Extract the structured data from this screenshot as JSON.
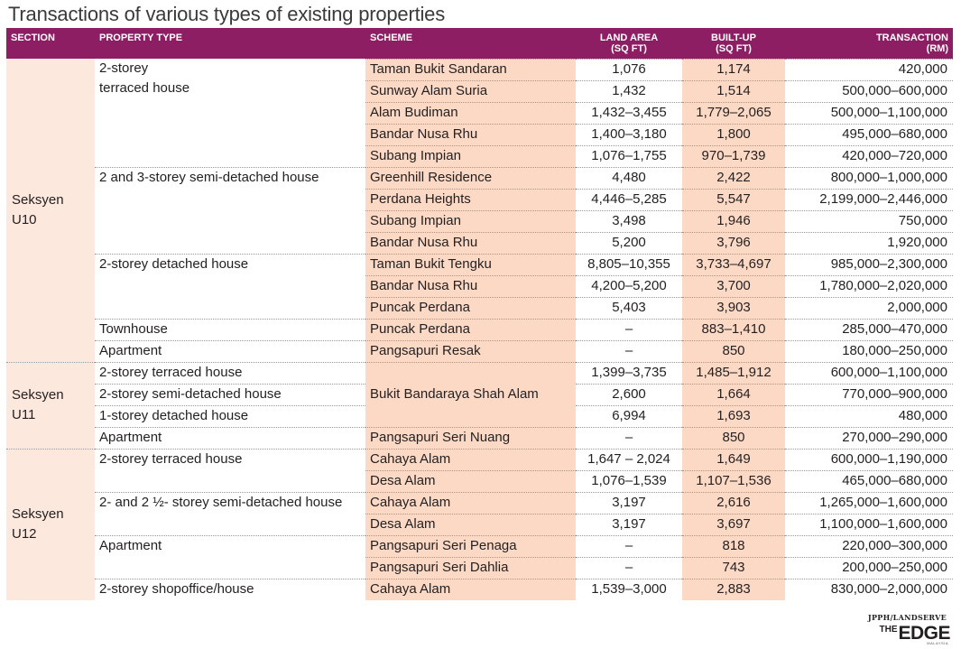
{
  "title": "Transactions of various types of existing properties",
  "columns": {
    "section": "SECTION",
    "property_type": "PROPERTY TYPE",
    "scheme": "SCHEME",
    "land_area": "LAND AREA",
    "land_area_unit": "(SQ FT)",
    "built_up": "BUILT-UP",
    "built_up_unit": "(SQ FT)",
    "transaction": "TRANSACTION",
    "transaction_unit": "(RM)"
  },
  "sections": [
    {
      "name": "Seksyen U10",
      "line1": "Seksyen",
      "line2": "U10"
    },
    {
      "name": "Seksyen U11"
    },
    {
      "name": "Seksyen U12",
      "line1": "Seksyen",
      "line2": "U12"
    }
  ],
  "property_types": {
    "u10_terraced_line1": "2-storey",
    "u10_terraced_line2": "terraced house",
    "u10_semid": "2 and 3-storey semi-detached house",
    "u10_detached": "2-storey detached house",
    "u10_townhouse": "Townhouse",
    "u10_apartment": "Apartment",
    "u11_terraced": "2-storey terraced house",
    "u11_semid": "2-storey semi-detached house",
    "u11_detached": "1-storey detached house",
    "u11_apartment": "Apartment",
    "u12_terraced": "2-storey terraced house",
    "u12_semid": "2- and 2 ½- storey semi-detached house",
    "u12_apartment": "Apartment",
    "u12_shopoffice": "2-storey shopoffice/house"
  },
  "rows": [
    {
      "scheme": "Taman Bukit Sandaran",
      "land": "1,076",
      "built": "1,174",
      "trans": "420,000"
    },
    {
      "scheme": "Sunway Alam Suria",
      "land": "1,432",
      "built": "1,514",
      "trans": "500,000–600,000"
    },
    {
      "scheme": "Alam Budiman",
      "land": "1,432–3,455",
      "built": "1,779–2,065",
      "trans": "500,000–1,100,000"
    },
    {
      "scheme": "Bandar Nusa Rhu",
      "land": "1,400–3,180",
      "built": "1,800",
      "trans": "495,000–680,000"
    },
    {
      "scheme": "Subang Impian",
      "land": "1,076–1,755",
      "built": "970–1,739",
      "trans": "420,000–720,000"
    },
    {
      "scheme": "Greenhill Residence",
      "land": "4,480",
      "built": "2,422",
      "trans": "800,000–1,000,000"
    },
    {
      "scheme": "Perdana Heights",
      "land": "4,446–5,285",
      "built": "5,547",
      "trans": "2,199,000–2,446,000"
    },
    {
      "scheme": "Subang Impian",
      "land": "3,498",
      "built": "1,946",
      "trans": "750,000"
    },
    {
      "scheme": "Bandar Nusa Rhu",
      "land": "5,200",
      "built": "3,796",
      "trans": "1,920,000"
    },
    {
      "scheme": "Taman Bukit Tengku",
      "land": "8,805–10,355",
      "built": "3,733–4,697",
      "trans": "985,000–2,300,000"
    },
    {
      "scheme": "Bandar Nusa Rhu",
      "land": "4,200–5,200",
      "built": "3,700",
      "trans": "1,780,000–2,020,000"
    },
    {
      "scheme": "Puncak Perdana",
      "land": "5,403",
      "built": "3,903",
      "trans": "2,000,000"
    },
    {
      "scheme": "Puncak Perdana",
      "land": "–",
      "built": "883–1,410",
      "trans": "285,000–470,000"
    },
    {
      "scheme": "Pangsapuri Resak",
      "land": "–",
      "built": "850",
      "trans": "180,000–250,000"
    },
    {
      "scheme": "Bukit Bandaraya Shah Alam",
      "land": "1,399–3,735",
      "built": "1,485–1,912",
      "trans": "600,000–1,100,000"
    },
    {
      "scheme": "",
      "land": "2,600",
      "built": "1,664",
      "trans": "770,000–900,000"
    },
    {
      "scheme": "",
      "land": "6,994",
      "built": "1,693",
      "trans": "480,000"
    },
    {
      "scheme": "Pangsapuri Seri Nuang",
      "land": "–",
      "built": "850",
      "trans": "270,000–290,000"
    },
    {
      "scheme": "Cahaya Alam",
      "land": "1,647 – 2,024",
      "built": "1,649",
      "trans": "600,000–1,190,000"
    },
    {
      "scheme": "Desa Alam",
      "land": "1,076–1,539",
      "built": "1,107–1,536",
      "trans": "465,000–680,000"
    },
    {
      "scheme": "Cahaya Alam",
      "land": "3,197",
      "built": "2,616",
      "trans": "1,265,000–1,600,000"
    },
    {
      "scheme": "Desa Alam",
      "land": "3,197",
      "built": "3,697",
      "trans": "1,100,000–1,600,000"
    },
    {
      "scheme": "Pangsapuri Seri Penaga",
      "land": "–",
      "built": "818",
      "trans": "220,000–300,000"
    },
    {
      "scheme": "Pangsapuri Seri Dahlia",
      "land": "–",
      "built": "743",
      "trans": "200,000–250,000"
    },
    {
      "scheme": "Cahaya Alam",
      "land": "1,539–3,000",
      "built": "2,883",
      "trans": "830,000–2,000,000"
    }
  ],
  "source": "JPPH/LANDSERVE",
  "logo": {
    "the": "THE",
    "edge": "EDGE",
    "sub": "MALAYSIA"
  }
}
